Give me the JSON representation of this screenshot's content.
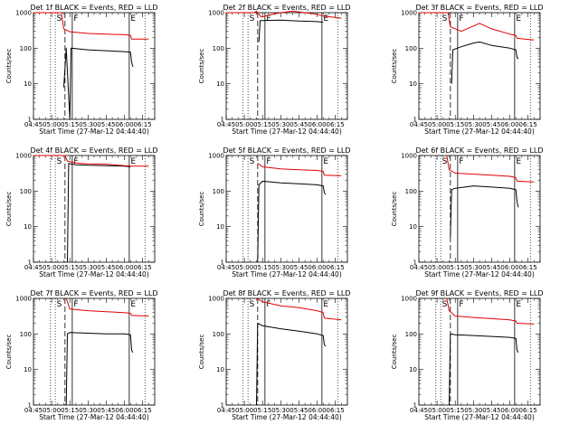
{
  "chart_data": [
    {
      "type": "line",
      "title": "Det 1f BLACK = Events, RED = LLD",
      "xlabel": "Start Time (27-Mar-12 04:44:40)",
      "ylabel": "Counts/sec",
      "yscale": "log",
      "ylim": [
        1,
        1000
      ],
      "xlim": [
        "04:45",
        "06:25"
      ],
      "x_ticks": [
        "04:45",
        "05:00",
        "05:15",
        "05:30",
        "05:45",
        "06:00",
        "06:15"
      ],
      "y_ticks": [
        "1",
        "10",
        "100",
        "1000"
      ],
      "markers": [
        "S",
        "F",
        "E"
      ],
      "series": [
        {
          "name": "BLACK = Events",
          "color": "#000000",
          "points": [
            [
              "05:10",
              8
            ],
            [
              "05:12",
              100
            ],
            [
              "05:15",
              1
            ],
            [
              "05:16",
              100
            ],
            [
              "05:30",
              90
            ],
            [
              "05:45",
              85
            ],
            [
              "06:00",
              80
            ],
            [
              "06:05",
              78
            ],
            [
              "06:06",
              40
            ],
            [
              "06:07",
              30
            ]
          ]
        },
        {
          "name": "RED = LLD",
          "color": "#e00000",
          "points": [
            [
              "04:45",
              1000
            ],
            [
              "05:08",
              1000
            ],
            [
              "05:10",
              350
            ],
            [
              "05:15",
              290
            ],
            [
              "05:30",
              260
            ],
            [
              "05:45",
              250
            ],
            [
              "06:00",
              240
            ],
            [
              "06:05",
              230
            ],
            [
              "06:06",
              180
            ],
            [
              "06:20",
              180
            ]
          ]
        }
      ]
    },
    {
      "type": "line",
      "title": "Det 2f BLACK = Events, RED = LLD",
      "xlabel": "Start Time (27-Mar-12 04:44:40)",
      "ylabel": "Counts/sec",
      "yscale": "log",
      "ylim": [
        1,
        1000
      ],
      "xlim": [
        "04:45",
        "06:25"
      ],
      "x_ticks": [
        "04:45",
        "05:00",
        "05:15",
        "05:30",
        "05:45",
        "06:00",
        "06:15"
      ],
      "y_ticks": [
        "1",
        "10",
        "100",
        "1000"
      ],
      "markers": [
        "S",
        "F",
        "E"
      ],
      "series": [
        {
          "name": "BLACK = Events",
          "color": "#000000",
          "points": [
            [
              "05:12",
              150
            ],
            [
              "05:13",
              600
            ],
            [
              "05:15",
              600
            ],
            [
              "05:30",
              620
            ],
            [
              "05:45",
              580
            ],
            [
              "06:00",
              560
            ],
            [
              "06:05",
              540
            ]
          ]
        },
        {
          "name": "RED = LLD",
          "color": "#e00000",
          "points": [
            [
              "04:45",
              1000
            ],
            [
              "05:08",
              1000
            ],
            [
              "05:10",
              1100
            ],
            [
              "05:14",
              750
            ],
            [
              "05:20",
              850
            ],
            [
              "05:30",
              1000
            ],
            [
              "05:40",
              1100
            ],
            [
              "05:50",
              1000
            ],
            [
              "06:00",
              900
            ],
            [
              "06:05",
              800
            ],
            [
              "06:20",
              700
            ]
          ]
        }
      ]
    },
    {
      "type": "line",
      "title": "Det 3f BLACK = Events, RED = LLD",
      "xlabel": "Start Time (27-Mar-12 04:44:40)",
      "ylabel": "Counts/sec",
      "yscale": "log",
      "ylim": [
        1,
        1000
      ],
      "xlim": [
        "04:45",
        "06:25"
      ],
      "x_ticks": [
        "04:45",
        "05:00",
        "05:15",
        "05:30",
        "05:45",
        "06:00",
        "06:15"
      ],
      "y_ticks": [
        "1",
        "10",
        "100",
        "1000"
      ],
      "markers": [
        "S",
        "F",
        "E"
      ],
      "series": [
        {
          "name": "BLACK = Events",
          "color": "#000000",
          "points": [
            [
              "05:12",
              10
            ],
            [
              "05:13",
              90
            ],
            [
              "05:20",
              110
            ],
            [
              "05:30",
              140
            ],
            [
              "05:35",
              150
            ],
            [
              "05:45",
              120
            ],
            [
              "06:00",
              100
            ],
            [
              "06:05",
              90
            ],
            [
              "06:06",
              55
            ],
            [
              "06:07",
              50
            ]
          ]
        },
        {
          "name": "RED = LLD",
          "color": "#e00000",
          "points": [
            [
              "04:45",
              1000
            ],
            [
              "05:09",
              1000
            ],
            [
              "05:11",
              400
            ],
            [
              "05:20",
              300
            ],
            [
              "05:30",
              420
            ],
            [
              "05:35",
              500
            ],
            [
              "05:45",
              350
            ],
            [
              "06:00",
              250
            ],
            [
              "06:05",
              230
            ],
            [
              "06:06",
              190
            ],
            [
              "06:20",
              170
            ]
          ]
        }
      ]
    },
    {
      "type": "line",
      "title": "Det 4f BLACK = Events, RED = LLD",
      "xlabel": "Start Time (27-Mar-12 04:44:40)",
      "ylabel": "Counts/sec",
      "yscale": "log",
      "ylim": [
        1,
        1000
      ],
      "xlim": [
        "04:45",
        "06:25"
      ],
      "x_ticks": [
        "04:45",
        "05:00",
        "05:15",
        "05:30",
        "05:45",
        "06:00",
        "06:15"
      ],
      "y_ticks": [
        "1",
        "10",
        "100",
        "1000"
      ],
      "markers": [
        "S",
        "F",
        "E"
      ],
      "series": [
        {
          "name": "BLACK = Events",
          "color": "#000000",
          "points": [
            [
              "05:13",
              1
            ],
            [
              "05:14",
              600
            ],
            [
              "05:20",
              550
            ],
            [
              "05:30",
              530
            ],
            [
              "05:45",
              520
            ],
            [
              "06:00",
              500
            ],
            [
              "06:05",
              480
            ]
          ]
        },
        {
          "name": "RED = LLD",
          "color": "#e00000",
          "points": [
            [
              "04:45",
              1000
            ],
            [
              "05:11",
              1000
            ],
            [
              "05:13",
              700
            ],
            [
              "05:20",
              620
            ],
            [
              "05:30",
              580
            ],
            [
              "05:45",
              570
            ],
            [
              "06:00",
              520
            ],
            [
              "06:05",
              500
            ],
            [
              "06:20",
              500
            ]
          ]
        }
      ]
    },
    {
      "type": "line",
      "title": "Det 5f BLACK = Events, RED = LLD",
      "xlabel": "Start Time (27-Mar-12 04:44:40)",
      "ylabel": "Counts/sec",
      "yscale": "log",
      "ylim": [
        1,
        1000
      ],
      "xlim": [
        "04:45",
        "06:25"
      ],
      "x_ticks": [
        "04:45",
        "05:00",
        "05:15",
        "05:30",
        "05:45",
        "06:00",
        "06:15"
      ],
      "y_ticks": [
        "1",
        "10",
        "100",
        "1000"
      ],
      "markers": [
        "S",
        "F",
        "E"
      ],
      "series": [
        {
          "name": "BLACK = Events",
          "color": "#000000",
          "points": [
            [
              "05:11",
              1
            ],
            [
              "05:12",
              150
            ],
            [
              "05:15",
              190
            ],
            [
              "05:30",
              170
            ],
            [
              "05:45",
              160
            ],
            [
              "06:00",
              150
            ],
            [
              "06:05",
              140
            ],
            [
              "06:06",
              90
            ],
            [
              "06:07",
              80
            ]
          ]
        },
        {
          "name": "RED = LLD",
          "color": "#e00000",
          "points": [
            [
              "05:11",
              600
            ],
            [
              "05:15",
              480
            ],
            [
              "05:30",
              420
            ],
            [
              "05:45",
              400
            ],
            [
              "06:00",
              380
            ],
            [
              "06:05",
              360
            ],
            [
              "06:06",
              280
            ],
            [
              "06:20",
              270
            ]
          ]
        }
      ]
    },
    {
      "type": "line",
      "title": "Det 6f BLACK = Events, RED = LLD",
      "xlabel": "Start Time (27-Mar-12 04:44:40)",
      "ylabel": "Counts/sec",
      "yscale": "log",
      "ylim": [
        1,
        1000
      ],
      "xlim": [
        "04:45",
        "06:25"
      ],
      "x_ticks": [
        "04:45",
        "05:00",
        "05:15",
        "05:30",
        "05:45",
        "06:00",
        "06:15"
      ],
      "y_ticks": [
        "1",
        "10",
        "100",
        "1000"
      ],
      "markers": [
        "S",
        "F",
        "E"
      ],
      "series": [
        {
          "name": "BLACK = Events",
          "color": "#000000",
          "points": [
            [
              "05:11",
              5
            ],
            [
              "05:12",
              110
            ],
            [
              "05:15",
              120
            ],
            [
              "05:30",
              140
            ],
            [
              "05:45",
              130
            ],
            [
              "06:00",
              120
            ],
            [
              "06:05",
              110
            ],
            [
              "06:06",
              50
            ],
            [
              "06:07",
              35
            ]
          ]
        },
        {
          "name": "RED = LLD",
          "color": "#e00000",
          "points": [
            [
              "05:08",
              1000
            ],
            [
              "05:10",
              400
            ],
            [
              "05:15",
              320
            ],
            [
              "05:30",
              300
            ],
            [
              "05:45",
              280
            ],
            [
              "06:00",
              260
            ],
            [
              "06:05",
              240
            ],
            [
              "06:06",
              190
            ],
            [
              "06:20",
              180
            ]
          ]
        }
      ]
    },
    {
      "type": "line",
      "title": "Det 7f BLACK = Events, RED = LLD",
      "xlabel": "Start Time (27-Mar-12 04:44:40)",
      "ylabel": "Counts/sec",
      "yscale": "log",
      "ylim": [
        1,
        1000
      ],
      "xlim": [
        "04:45",
        "06:25"
      ],
      "x_ticks": [
        "04:45",
        "05:00",
        "05:15",
        "05:30",
        "05:45",
        "06:00",
        "06:15"
      ],
      "y_ticks": [
        "1",
        "10",
        "100",
        "1000"
      ],
      "markers": [
        "S",
        "F",
        "E"
      ],
      "series": [
        {
          "name": "BLACK = Events",
          "color": "#000000",
          "points": [
            [
              "05:12",
              1
            ],
            [
              "05:13",
              100
            ],
            [
              "05:15",
              110
            ],
            [
              "05:30",
              105
            ],
            [
              "05:45",
              100
            ],
            [
              "06:00",
              100
            ],
            [
              "06:05",
              95
            ],
            [
              "06:06",
              35
            ],
            [
              "06:07",
              30
            ]
          ]
        },
        {
          "name": "RED = LLD",
          "color": "#e00000",
          "points": [
            [
              "05:12",
              1000
            ],
            [
              "05:15",
              500
            ],
            [
              "05:30",
              450
            ],
            [
              "05:45",
              420
            ],
            [
              "06:00",
              400
            ],
            [
              "06:05",
              380
            ],
            [
              "06:06",
              330
            ],
            [
              "06:20",
              320
            ]
          ]
        }
      ]
    },
    {
      "type": "line",
      "title": "Det 8f BLACK = Events, RED = LLD",
      "xlabel": "Start Time (27-Mar-12 04:44:40)",
      "ylabel": "Counts/sec",
      "yscale": "log",
      "ylim": [
        1,
        1000
      ],
      "xlim": [
        "04:45",
        "06:25"
      ],
      "x_ticks": [
        "04:45",
        "05:00",
        "05:15",
        "05:30",
        "05:45",
        "06:00",
        "06:15"
      ],
      "y_ticks": [
        "1",
        "10",
        "100",
        "1000"
      ],
      "markers": [
        "S",
        "F",
        "E"
      ],
      "series": [
        {
          "name": "BLACK = Events",
          "color": "#000000",
          "points": [
            [
              "05:10",
              1
            ],
            [
              "05:11",
              200
            ],
            [
              "05:15",
              170
            ],
            [
              "05:30",
              140
            ],
            [
              "05:45",
              120
            ],
            [
              "06:00",
              100
            ],
            [
              "06:05",
              90
            ],
            [
              "06:06",
              50
            ],
            [
              "06:07",
              45
            ]
          ]
        },
        {
          "name": "RED = LLD",
          "color": "#e00000",
          "points": [
            [
              "05:10",
              1000
            ],
            [
              "05:15",
              800
            ],
            [
              "05:30",
              620
            ],
            [
              "05:45",
              550
            ],
            [
              "06:00",
              450
            ],
            [
              "06:05",
              400
            ],
            [
              "06:06",
              280
            ],
            [
              "06:20",
              250
            ]
          ]
        }
      ]
    },
    {
      "type": "line",
      "title": "Det 9f BLACK = Events, RED = LLD",
      "xlabel": "Start Time (27-Mar-12 04:44:40)",
      "ylabel": "Counts/sec",
      "yscale": "log",
      "ylim": [
        1,
        1000
      ],
      "xlim": [
        "04:45",
        "06:25"
      ],
      "x_ticks": [
        "04:45",
        "05:00",
        "05:15",
        "05:30",
        "05:45",
        "06:00",
        "06:15"
      ],
      "y_ticks": [
        "1",
        "10",
        "100",
        "1000"
      ],
      "markers": [
        "S",
        "F",
        "E"
      ],
      "series": [
        {
          "name": "BLACK = Events",
          "color": "#000000",
          "points": [
            [
              "05:10",
              1
            ],
            [
              "05:11",
              100
            ],
            [
              "05:15",
              95
            ],
            [
              "05:30",
              90
            ],
            [
              "05:45",
              85
            ],
            [
              "06:00",
              80
            ],
            [
              "06:05",
              75
            ],
            [
              "06:06",
              35
            ],
            [
              "06:07",
              30
            ]
          ]
        },
        {
          "name": "RED = LLD",
          "color": "#e00000",
          "points": [
            [
              "05:08",
              1000
            ],
            [
              "05:10",
              450
            ],
            [
              "05:15",
              320
            ],
            [
              "05:30",
              290
            ],
            [
              "05:45",
              270
            ],
            [
              "06:00",
              250
            ],
            [
              "06:05",
              230
            ],
            [
              "06:06",
              200
            ],
            [
              "06:20",
              190
            ]
          ]
        }
      ]
    }
  ]
}
